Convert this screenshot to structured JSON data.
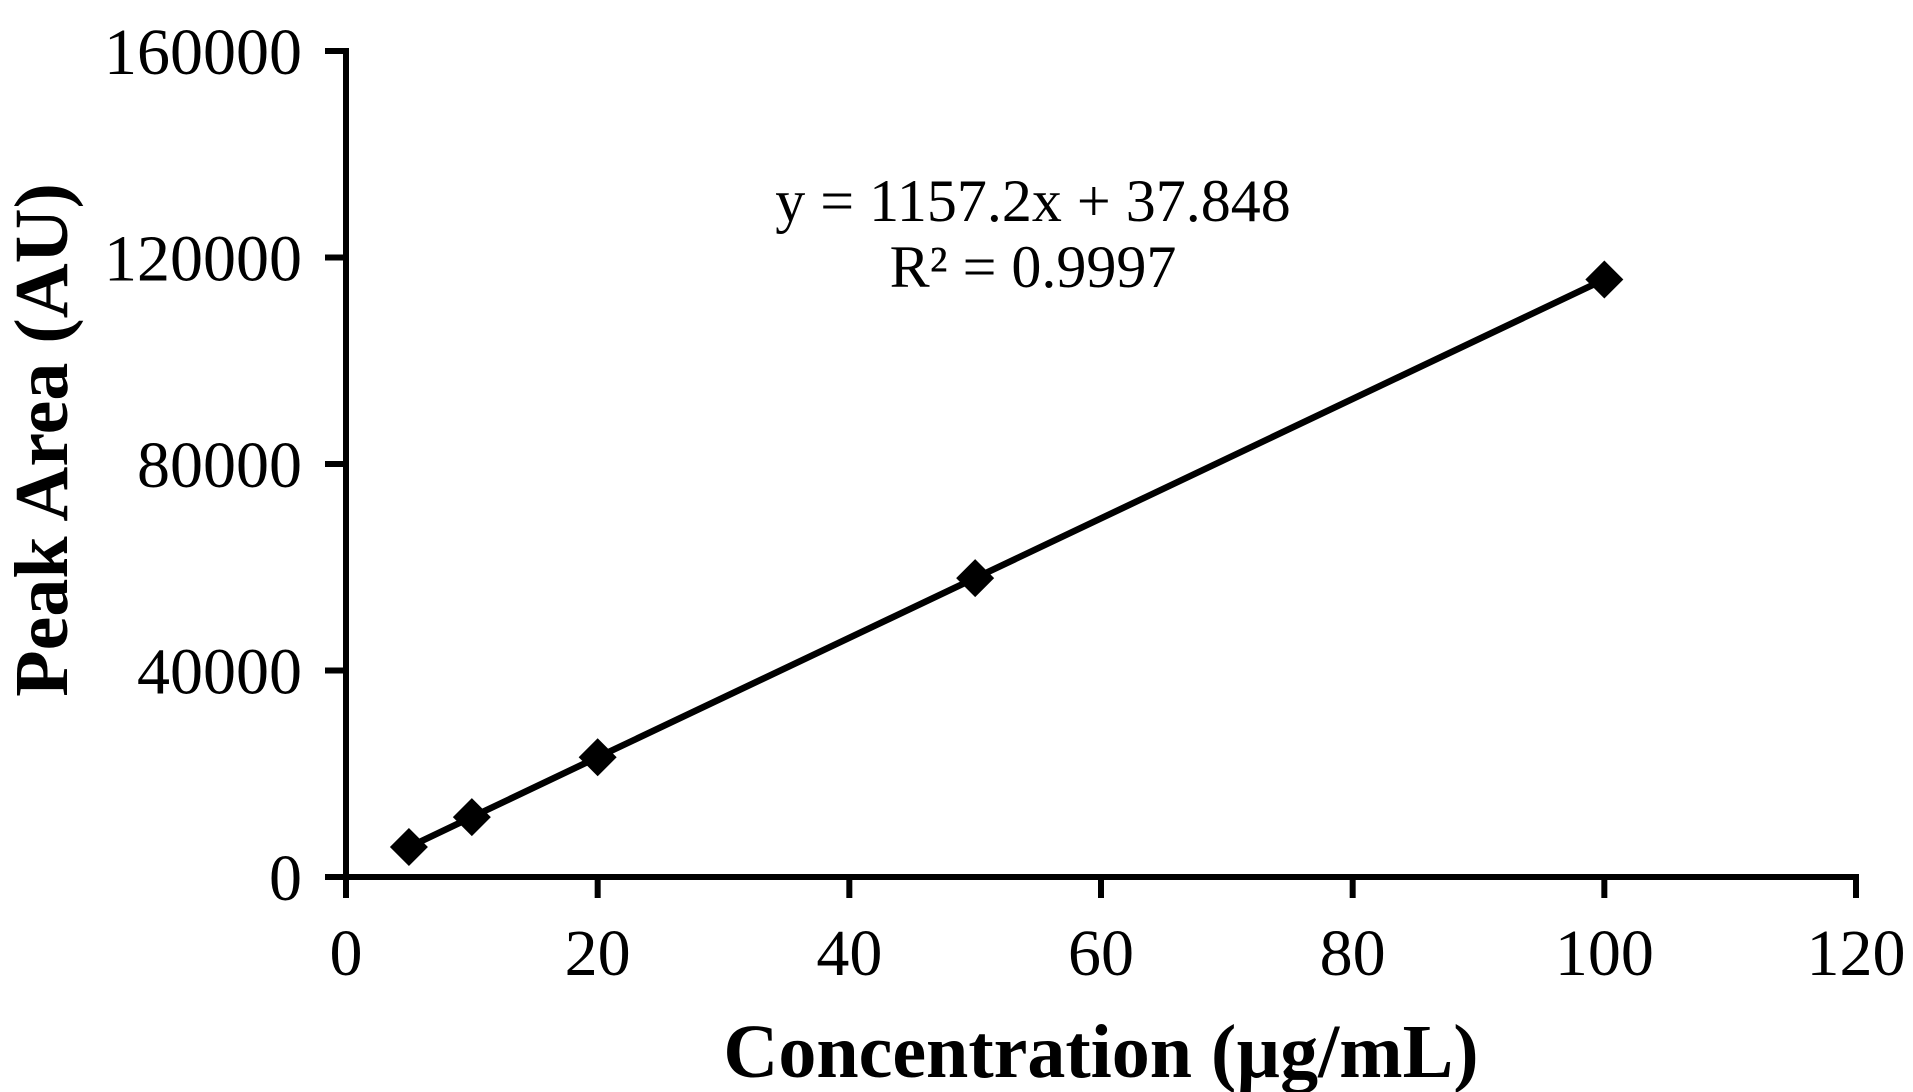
{
  "colors": {
    "foreground": "#000000",
    "background": "#ffffff"
  },
  "chart_data": {
    "type": "scatter",
    "title": "",
    "xlabel": "Concentration (µg/mL)",
    "ylabel": "Peak Area (AU)",
    "xlim": [
      0,
      120
    ],
    "ylim": [
      0,
      160000
    ],
    "x_ticks": [
      0,
      20,
      40,
      60,
      80,
      100,
      120
    ],
    "y_ticks": [
      0,
      40000,
      80000,
      120000,
      160000
    ],
    "grid": false,
    "legend_position": "none",
    "marker_shape": "diamond",
    "line_style": "solid",
    "series": [
      {
        "x": [
          5,
          10,
          20,
          50,
          100
        ],
        "y": [
          5800,
          11600,
          23200,
          57900,
          115750
        ],
        "color": "#000000"
      }
    ],
    "annotation": {
      "equation": "y = 1157.2x + 37.848",
      "r_squared": "R² = 0.9997",
      "slope": 1157.2,
      "intercept": 37.848,
      "r2": 0.9997
    }
  }
}
